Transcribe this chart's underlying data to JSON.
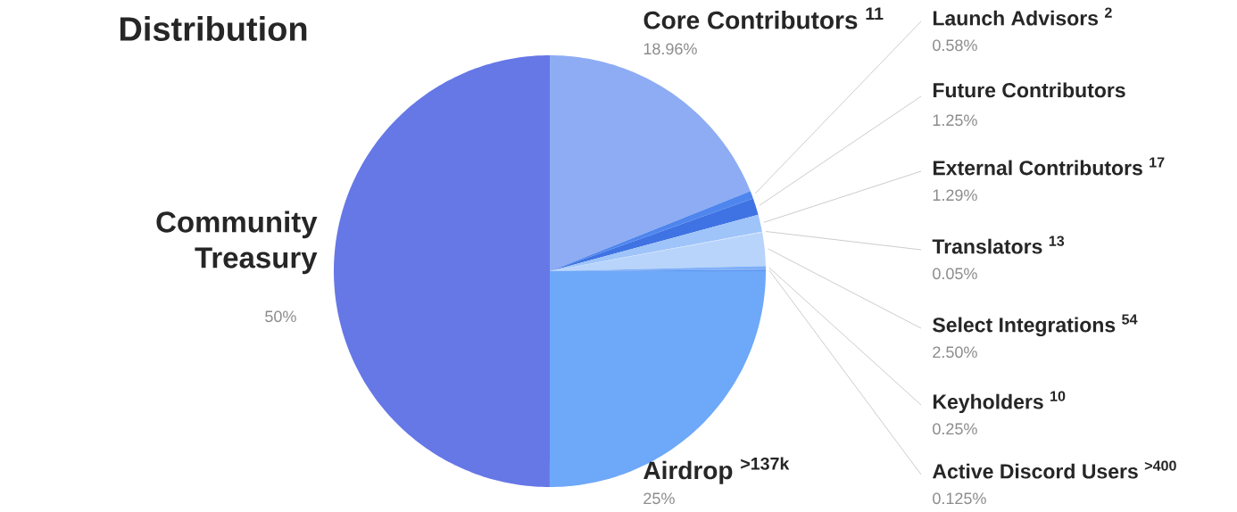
{
  "chart_data": {
    "type": "pie",
    "title": "Distribution",
    "categories": [
      "Core Contributors $^{11}$",
      "Launch Advisors $^{2}$",
      "Future Contributors",
      "External Contributors $^{17}$",
      "Translators $^{13}$",
      "Select Integrations $^{54}$",
      "Keyholders $^{10}$",
      "Active Discord Users $^{>400}$",
      "Airdrop $^{>137k}$",
      "Community Treasury"
    ],
    "values": [
      18.96,
      0.58,
      1.25,
      1.29,
      0.05,
      2.5,
      0.25,
      0.125,
      25,
      50
    ],
    "value_labels": [
      "18.96%",
      "0.58%",
      "1.25%",
      "1.29%",
      "0.05%",
      "2.50%",
      "0.25%",
      "0.125%",
      "25%",
      "50%"
    ],
    "colors": [
      "#8eacf4",
      "#4f86ee",
      "#3f73e4",
      "#9ec4fa",
      "#cfe2fd",
      "#b8d4fb",
      "#7fb0f8",
      "#5d95f2",
      "#6ea8f8",
      "#6677e6"
    ]
  }
}
